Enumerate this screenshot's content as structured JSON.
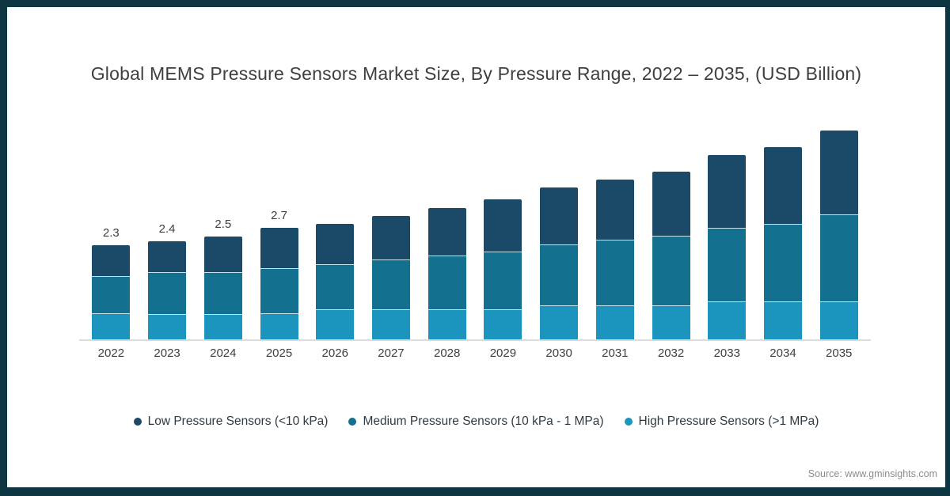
{
  "title": "Global MEMS Pressure Sensors Market Size, By Pressure Range, 2022 – 2035, (USD Billion)",
  "source_note": "Source: www.gminsights.com",
  "colors": {
    "frame_border": "#0e3642",
    "low_pressure": "#1b4a68",
    "medium_pressure": "#13718f",
    "high_pressure": "#1b95bd",
    "axis_line": "#dcdcdc",
    "label_text": "#404040",
    "source_text": "#8c8c8c"
  },
  "chart_data": {
    "type": "bar",
    "stacked": true,
    "unit": "USD Billion",
    "title": "Global MEMS Pressure Sensors Market Size, By Pressure Range, 2022 – 2035, (USD Billion)",
    "categories": [
      "2022",
      "2023",
      "2024",
      "2025",
      "2026",
      "2027",
      "2028",
      "2029",
      "2030",
      "2031",
      "2032",
      "2033",
      "2034",
      "2035"
    ],
    "series": [
      {
        "name": "Low Pressure Sensors (<10 kPa)",
        "color": "#1b4a68",
        "stack_position": "top",
        "values": [
          0.76,
          0.76,
          0.87,
          0.99,
          0.99,
          1.07,
          1.17,
          1.28,
          1.38,
          1.48,
          1.57,
          1.79,
          1.9,
          2.06
        ]
      },
      {
        "name": "Medium Pressure Sensors (10 kPa - 1 MPa)",
        "color": "#13718f",
        "stack_position": "middle",
        "values": [
          0.91,
          1.03,
          1.03,
          1.11,
          1.11,
          1.22,
          1.32,
          1.42,
          1.51,
          1.61,
          1.71,
          1.81,
          1.9,
          2.14
        ]
      },
      {
        "name": "High Pressure Sensors (>1 MPa)",
        "color": "#1b95bd",
        "stack_position": "bottom",
        "values": [
          0.64,
          0.62,
          0.62,
          0.64,
          0.74,
          0.74,
          0.74,
          0.74,
          0.83,
          0.83,
          0.83,
          0.93,
          0.93,
          0.93
        ]
      }
    ],
    "bar_total_labels": [
      "2.3",
      "2.4",
      "2.5",
      "2.7",
      "",
      "",
      "",
      "",
      "",
      "",
      "",
      "",
      "",
      ""
    ],
    "approx_totals": [
      2.3,
      2.4,
      2.5,
      2.7,
      2.8,
      3.0,
      3.2,
      3.4,
      3.7,
      3.9,
      4.1,
      4.5,
      4.7,
      5.1
    ],
    "xlabel": "",
    "ylabel": "",
    "y_axis_visible": false,
    "grid": false,
    "legend_position": "bottom"
  },
  "legend": {
    "items": [
      {
        "label": "Low Pressure Sensors (<10 kPa)"
      },
      {
        "label": "Medium Pressure Sensors (10 kPa - 1 MPa)"
      },
      {
        "label": "High Pressure Sensors (>1 MPa)"
      }
    ]
  }
}
